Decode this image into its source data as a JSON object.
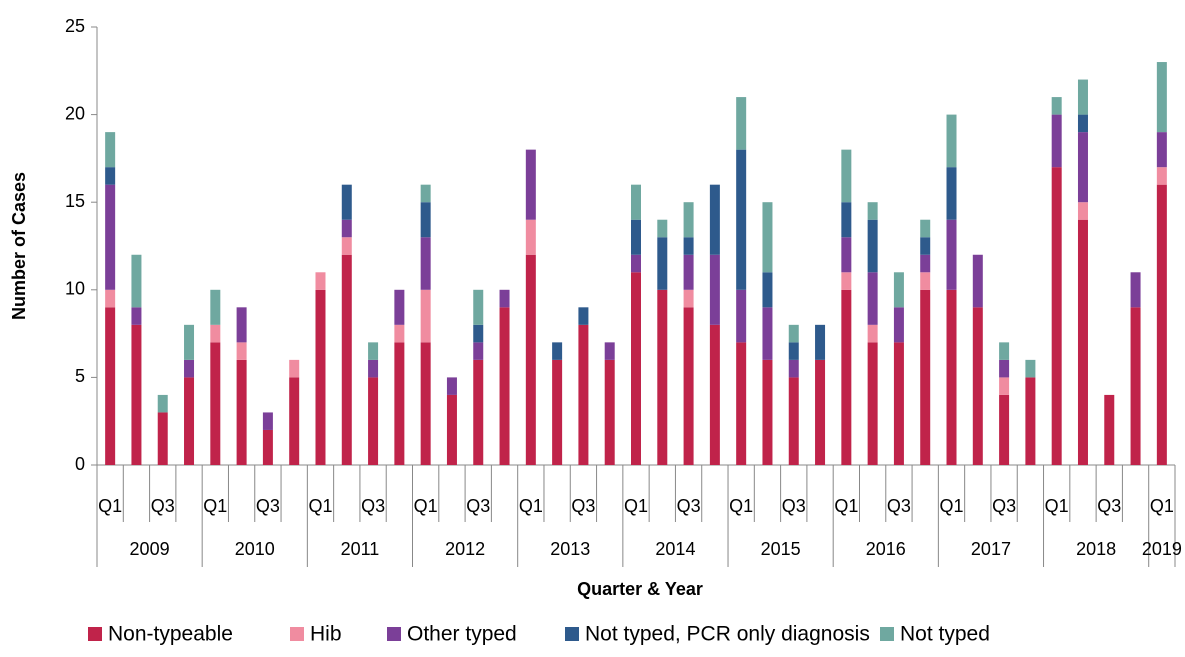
{
  "chart_data": {
    "type": "stacked_bar",
    "categories": [
      "Q1",
      null,
      "Q3",
      null,
      "Q1",
      null,
      "Q3",
      null,
      "Q1",
      null,
      "Q3",
      null,
      "Q1",
      null,
      "Q3",
      null,
      "Q1",
      null,
      "Q3",
      null,
      "Q1",
      null,
      "Q3",
      null,
      "Q1",
      null,
      "Q3",
      null,
      "Q1",
      null,
      "Q3",
      null,
      "Q1",
      null,
      "Q3",
      null,
      "Q1",
      null,
      "Q3",
      null,
      "Q1"
    ],
    "years": [
      "2009",
      "2010",
      "2011",
      "2012",
      "2013",
      "2014",
      "2015",
      "2016",
      "2017",
      "2018",
      "2019"
    ],
    "xlabel": "Quarter & Year",
    "ylabel": "Number of Cases",
    "ylim": [
      0,
      25
    ],
    "yticks": [
      0,
      5,
      10,
      15,
      20,
      25
    ],
    "series": [
      {
        "name": "Non-typeable",
        "color": "#c0234a",
        "values": [
          9,
          8,
          3,
          5,
          7,
          6,
          2,
          5,
          10,
          12,
          5,
          7,
          7,
          4,
          6,
          9,
          12,
          6,
          8,
          6,
          11,
          10,
          9,
          8,
          7,
          6,
          5,
          6,
          10,
          7,
          7,
          10,
          10,
          9,
          4,
          5,
          17,
          14,
          4,
          9,
          16
        ]
      },
      {
        "name": "Hib",
        "color": "#f08ca0",
        "values": [
          1,
          0,
          0,
          0,
          1,
          1,
          0,
          1,
          1,
          1,
          0,
          1,
          3,
          0,
          0,
          0,
          2,
          0,
          0,
          0,
          0,
          0,
          1,
          0,
          0,
          0,
          0,
          0,
          1,
          1,
          0,
          1,
          0,
          0,
          1,
          0,
          0,
          1,
          0,
          0,
          1
        ]
      },
      {
        "name": "Other typed",
        "color": "#7b3f98",
        "values": [
          6,
          1,
          0,
          1,
          0,
          2,
          1,
          0,
          0,
          1,
          1,
          2,
          3,
          1,
          1,
          1,
          4,
          0,
          0,
          1,
          1,
          0,
          2,
          4,
          3,
          3,
          1,
          0,
          2,
          3,
          2,
          1,
          4,
          3,
          1,
          0,
          3,
          4,
          0,
          2,
          2
        ]
      },
      {
        "name": "Not typed, PCR only diagnosis",
        "color": "#2e5a8c",
        "values": [
          1,
          0,
          0,
          0,
          0,
          0,
          0,
          0,
          0,
          2,
          0,
          0,
          2,
          0,
          1,
          0,
          0,
          1,
          1,
          0,
          2,
          3,
          1,
          4,
          8,
          2,
          1,
          2,
          2,
          3,
          0,
          1,
          3,
          0,
          0,
          0,
          0,
          1,
          0,
          0,
          0
        ]
      },
      {
        "name": "Not typed",
        "color": "#6fa8a0",
        "values": [
          2,
          3,
          1,
          2,
          2,
          0,
          0,
          0,
          0,
          0,
          1,
          0,
          1,
          0,
          2,
          0,
          0,
          0,
          0,
          0,
          2,
          1,
          2,
          0,
          3,
          4,
          1,
          0,
          3,
          1,
          2,
          1,
          3,
          0,
          1,
          1,
          1,
          2,
          0,
          0,
          4
        ]
      }
    ]
  }
}
